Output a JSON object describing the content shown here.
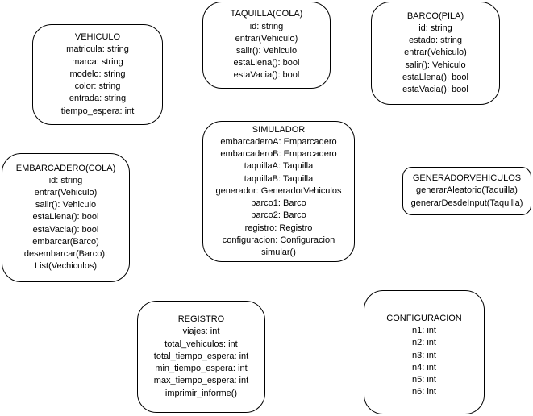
{
  "classes": {
    "vehiculo": {
      "title": "VEHICULO",
      "members": [
        "matricula: string",
        "marca: string",
        "modelo: string",
        "color: string",
        "entrada: string",
        "tiempo_espera: int"
      ]
    },
    "taquilla": {
      "title": "TAQUILLA(COLA)",
      "members": [
        "id: string",
        "entrar(Vehiculo)",
        "salir(): Vehiculo",
        "estaLlena(): bool",
        "estaVacia(): bool"
      ]
    },
    "barco": {
      "title": "BARCO(PILA)",
      "members": [
        "id: string",
        "estado: string",
        "entrar(Vehiculo)",
        "salir(): Vehiculo",
        "estaLlena(): bool",
        "estaVacia(): bool"
      ]
    },
    "simulador": {
      "title": "SIMULADOR",
      "members": [
        "embarcaderoA: Emparcadero",
        "embarcaderoB: Emparcadero",
        "taquillaA: Taquilla",
        "taquillaB: Taquilla",
        "generador: GeneradorVehiculos",
        "barco1: Barco",
        "barco2: Barco",
        "registro: Registro",
        "configuracion: Configuracion",
        "simular()"
      ]
    },
    "embarcadero": {
      "title": "EMBARCADERO(COLA)",
      "members": [
        "id: string",
        "entrar(Vehiculo)",
        "salir(): Vehiculo",
        "estaLlena(): bool",
        "estaVacia(): bool",
        "embarcar(Barco)",
        "desembarcar(Barco): List(Vechiculos)"
      ]
    },
    "generador": {
      "title": "GENERADORVEHICULOS",
      "members": [
        "generarAleatorio(Taquilla)",
        "generarDesdeInput(Taquilla)"
      ]
    },
    "registro": {
      "title": "REGISTRO",
      "members": [
        "viajes: int",
        "total_vehiculos: int",
        "total_tiempo_espera: int",
        "min_tiempo_espera: int",
        "max_tiempo_espera: int",
        "imprimir_informe()"
      ]
    },
    "configuracion": {
      "title": "CONFIGURACION",
      "members": [
        "n1: int",
        "n2: int",
        "n3: int",
        "n4: int",
        "n5: int",
        "n6: int"
      ]
    }
  },
  "colors": {
    "border": "#000000",
    "background": "#ffffff",
    "text": "#000000"
  }
}
